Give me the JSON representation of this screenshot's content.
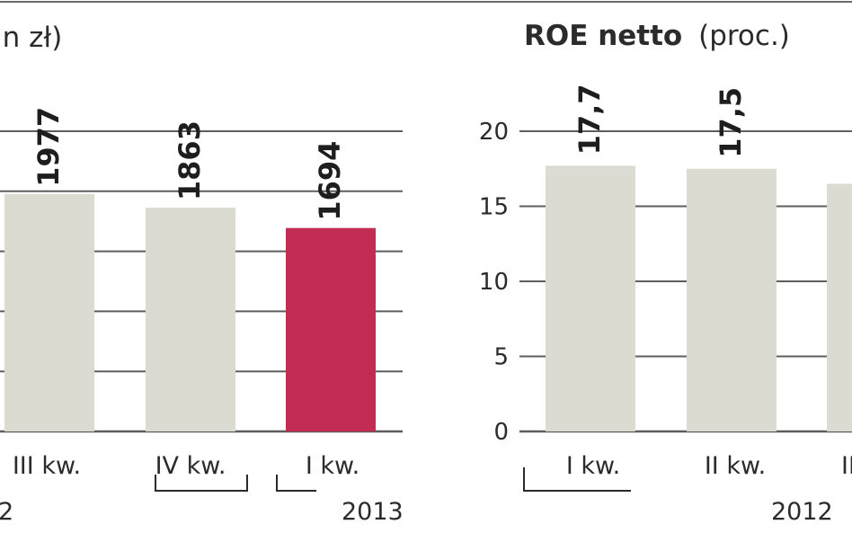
{
  "chart_data": [
    {
      "type": "bar",
      "title_fragment": "ln zł)",
      "categories": [
        "III kw.",
        "IV kw.",
        "I kw."
      ],
      "year_labels": [
        "2",
        "2013"
      ],
      "values": [
        1977,
        1863,
        1694
      ],
      "value_labels": [
        "1977",
        "1863",
        "1694"
      ],
      "highlight_index": 2,
      "grid": true
    },
    {
      "type": "bar",
      "title": "ROE netto",
      "title_unit": "(proc.)",
      "categories": [
        "I kw.",
        "II kw.",
        "II"
      ],
      "year_labels": [
        "2012"
      ],
      "values": [
        17.7,
        17.5,
        16.5
      ],
      "value_labels": [
        "17,7",
        "17,5",
        ""
      ],
      "yticks": [
        "0",
        "5",
        "10",
        "15",
        "20"
      ],
      "ylim": [
        0,
        20
      ],
      "grid": true
    }
  ],
  "colors": {
    "bar": "#dcdbd2",
    "highlight": "#c22b52",
    "grid": "#5e5e5e",
    "text": "#2b2b2b",
    "value_text": "#1e1e1e"
  }
}
